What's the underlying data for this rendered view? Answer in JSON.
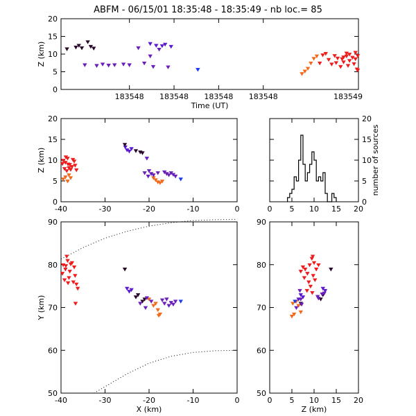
{
  "title": "ABFM - 06/15/01 18:35:48 - 18:35:49 - nb loc.=      85",
  "colors": {
    "red": "#ee1c1c",
    "orange": "#f06a1a",
    "purple": "#6a1fb8",
    "violet": "#5a1ad0",
    "dark": "#2a0a2a",
    "blue": "#1c3cf0",
    "axis": "#000000"
  },
  "chart_data": [
    {
      "id": "time-height",
      "type": "scatter",
      "xlabel": "Time (UT)",
      "ylabel": "Z (km)",
      "xticklabels": [
        "183548",
        "183548",
        "183548",
        "183548",
        "183549"
      ],
      "ylim": [
        0,
        20
      ],
      "yticks": [
        0,
        5,
        10,
        15,
        20
      ],
      "series": [
        {
          "color": "dark",
          "points": [
            [
              0.02,
              11.5
            ],
            [
              0.05,
              12
            ],
            [
              0.06,
              12.5
            ],
            [
              0.07,
              11.8
            ],
            [
              0.09,
              13.5
            ],
            [
              0.1,
              12.2
            ],
            [
              0.11,
              11.7
            ]
          ]
        },
        {
          "color": "purple",
          "points": [
            [
              0.08,
              7
            ],
            [
              0.12,
              6.8
            ],
            [
              0.14,
              7.2
            ],
            [
              0.16,
              6.9
            ],
            [
              0.18,
              7
            ],
            [
              0.21,
              7.2
            ],
            [
              0.23,
              7
            ],
            [
              0.26,
              11.8
            ],
            [
              0.28,
              7.5
            ],
            [
              0.3,
              9.5
            ],
            [
              0.31,
              6.5
            ],
            [
              0.33,
              11.4
            ],
            [
              0.36,
              6.4
            ]
          ]
        },
        {
          "color": "violet",
          "points": [
            [
              0.3,
              13
            ],
            [
              0.32,
              12.5
            ],
            [
              0.34,
              12.4
            ],
            [
              0.35,
              12.8
            ],
            [
              0.37,
              12.2
            ]
          ]
        },
        {
          "color": "blue",
          "points": [
            [
              0.46,
              5.7
            ]
          ]
        },
        {
          "color": "orange",
          "points": [
            [
              0.81,
              4.5
            ],
            [
              0.82,
              5.2
            ],
            [
              0.83,
              6
            ],
            [
              0.84,
              7.5
            ],
            [
              0.85,
              8.8
            ],
            [
              0.86,
              9.5
            ]
          ]
        },
        {
          "color": "red",
          "points": [
            [
              0.87,
              7.5
            ],
            [
              0.88,
              9.8
            ],
            [
              0.89,
              10.2
            ],
            [
              0.9,
              8.5
            ],
            [
              0.91,
              7.2
            ],
            [
              0.92,
              9.6
            ],
            [
              0.93,
              8.9
            ],
            [
              0.94,
              6.5
            ],
            [
              0.95,
              7.8
            ],
            [
              0.95,
              9.2
            ],
            [
              0.96,
              9.5
            ],
            [
              0.97,
              8.2
            ],
            [
              0.97,
              10
            ],
            [
              0.98,
              9.1
            ],
            [
              0.99,
              8.7
            ],
            [
              0.99,
              10.5
            ],
            [
              1.0,
              9.6
            ],
            [
              0.985,
              7.3
            ],
            [
              0.965,
              6.8
            ],
            [
              0.945,
              8.7
            ],
            [
              0.925,
              7.6
            ],
            [
              1.0,
              5.5
            ],
            [
              0.995,
              5.8
            ],
            [
              0.96,
              10.3
            ]
          ]
        }
      ]
    },
    {
      "id": "x-height",
      "type": "scatter",
      "ylabel": "Z (km)",
      "xlim": [
        -40,
        0
      ],
      "ylim": [
        0,
        20
      ],
      "xticks": [
        -40,
        -30,
        -20,
        -10,
        0
      ],
      "yticks": [
        0,
        5,
        10,
        15,
        20
      ],
      "series": [
        {
          "color": "red",
          "points": [
            [
              -39.5,
              10
            ],
            [
              -39,
              9.5
            ],
            [
              -38.5,
              10.5
            ],
            [
              -38,
              9
            ],
            [
              -37.5,
              8.5
            ],
            [
              -37,
              9.8
            ],
            [
              -39.2,
              8
            ],
            [
              -38.7,
              7.5
            ],
            [
              -38.2,
              8.2
            ],
            [
              -37.8,
              7.8
            ],
            [
              -39.8,
              9.2
            ],
            [
              -36.8,
              8.8
            ],
            [
              -38.9,
              10.8
            ],
            [
              -37.3,
              10.2
            ],
            [
              -36.5,
              7.7
            ],
            [
              -38.4,
              9.1
            ]
          ]
        },
        {
          "color": "orange",
          "points": [
            [
              -39.5,
              5.5
            ],
            [
              -39,
              6
            ],
            [
              -38.5,
              5
            ],
            [
              -38.2,
              6.5
            ],
            [
              -37.8,
              5.8
            ],
            [
              -18.5,
              5.3
            ],
            [
              -18,
              4.8
            ],
            [
              -17.5,
              4.6
            ],
            [
              -17,
              5
            ],
            [
              -19,
              5.8
            ]
          ]
        },
        {
          "color": "violet",
          "points": [
            [
              -25,
              12.5
            ],
            [
              -24.5,
              12.2
            ],
            [
              -24,
              12.8
            ],
            [
              -25.4,
              13.2
            ]
          ]
        },
        {
          "color": "dark",
          "points": [
            [
              -25.5,
              13.8
            ],
            [
              -23,
              12.3
            ],
            [
              -22,
              12
            ],
            [
              -21.5,
              11.8
            ]
          ]
        },
        {
          "color": "purple",
          "points": [
            [
              -20.5,
              10.5
            ],
            [
              -20,
              7.5
            ],
            [
              -19.5,
              6.8
            ],
            [
              -19,
              6.5
            ],
            [
              -18,
              7
            ],
            [
              -16.5,
              7.2
            ],
            [
              -16,
              6.8
            ],
            [
              -15.5,
              6.5
            ],
            [
              -15,
              7
            ],
            [
              -14.5,
              6.6
            ],
            [
              -14,
              6.2
            ],
            [
              -21,
              7
            ],
            [
              -20.2,
              6.2
            ]
          ]
        },
        {
          "color": "blue",
          "points": [
            [
              -12.8,
              5.5
            ]
          ]
        }
      ]
    },
    {
      "id": "histogram",
      "type": "bar",
      "xlim": [
        0,
        20
      ],
      "ylim": [
        0,
        20
      ],
      "xticks": [
        0,
        5,
        10,
        15,
        20
      ],
      "yticks": [
        0,
        5,
        10,
        15,
        20
      ],
      "ylabel": "number of sources",
      "bin_width": 0.5,
      "bin_start": 4.0,
      "counts": [
        1,
        2,
        3,
        6,
        5,
        10,
        16,
        9,
        5,
        7,
        9,
        12,
        10,
        5,
        6,
        5,
        7,
        2,
        0,
        0,
        2,
        1
      ]
    },
    {
      "id": "plan-view",
      "type": "scatter",
      "xlabel": "X (km)",
      "ylabel": "Y (km)",
      "xlim": [
        -40,
        0
      ],
      "ylim": [
        50,
        90
      ],
      "xticks": [
        -40,
        -30,
        -20,
        -10,
        0
      ],
      "yticks": [
        50,
        60,
        70,
        80,
        90
      ],
      "series": [
        {
          "color": "red",
          "points": [
            [
              -39.5,
              80
            ],
            [
              -39,
              79
            ],
            [
              -38.5,
              81
            ],
            [
              -38,
              78.5
            ],
            [
              -37.5,
              80.5
            ],
            [
              -37,
              79.5
            ],
            [
              -39.8,
              78
            ],
            [
              -38.7,
              82
            ],
            [
              -38.2,
              77
            ],
            [
              -37.2,
              76
            ],
            [
              -36.5,
              75.5
            ],
            [
              -36.8,
              77.5
            ],
            [
              -39.2,
              76.5
            ],
            [
              -38.9,
              79.8
            ],
            [
              -37.8,
              80.2
            ],
            [
              -36.2,
              74.5
            ],
            [
              -38.4,
              75.8
            ],
            [
              -36.7,
              71
            ]
          ]
        },
        {
          "color": "orange",
          "points": [
            [
              -19,
              70.5
            ],
            [
              -18.5,
              71
            ],
            [
              -18,
              69.5
            ],
            [
              -17.8,
              68.2
            ],
            [
              -17.5,
              68.5
            ],
            [
              -20,
              72
            ]
          ]
        },
        {
          "color": "violet",
          "points": [
            [
              -25,
              74.5
            ],
            [
              -24.5,
              73.8
            ],
            [
              -24,
              74.2
            ]
          ]
        },
        {
          "color": "dark",
          "points": [
            [
              -25.5,
              79
            ],
            [
              -23,
              72.5
            ],
            [
              -22.5,
              73
            ],
            [
              -21.5,
              71.5
            ],
            [
              -21,
              72
            ]
          ]
        },
        {
          "color": "purple",
          "points": [
            [
              -22,
              71
            ],
            [
              -20.8,
              70
            ],
            [
              -20.5,
              72.3
            ],
            [
              -19.5,
              71.5
            ],
            [
              -16.5,
              71
            ],
            [
              -16,
              72
            ],
            [
              -15.5,
              70.5
            ],
            [
              -15,
              71.2
            ],
            [
              -14.5,
              70.8
            ],
            [
              -14,
              71.5
            ],
            [
              -17,
              71.8
            ]
          ]
        },
        {
          "color": "blue",
          "points": [
            [
              -12.8,
              71.5
            ]
          ]
        }
      ],
      "curves": [
        {
          "style": "dotted",
          "points": [
            [
              -40,
              81.3
            ],
            [
              -35,
              84
            ],
            [
              -30,
              86.2
            ],
            [
              -25,
              87.8
            ],
            [
              -20,
              89
            ],
            [
              -15,
              89.8
            ],
            [
              -10,
              90.3
            ],
            [
              -5,
              90.5
            ],
            [
              0,
              90.6
            ]
          ]
        },
        {
          "style": "dotted",
          "points": [
            [
              -32.5,
              50
            ],
            [
              -30,
              51.5
            ],
            [
              -25,
              54.5
            ],
            [
              -20,
              57
            ],
            [
              -15,
              58.6
            ],
            [
              -10,
              59.5
            ],
            [
              -5,
              59.9
            ],
            [
              0,
              60
            ]
          ]
        }
      ]
    },
    {
      "id": "z-plan",
      "type": "scatter",
      "xlabel": "Z (km)",
      "xlim": [
        0,
        20
      ],
      "ylim": [
        50,
        90
      ],
      "xticks": [
        0,
        5,
        10,
        15,
        20
      ],
      "yticks": [
        50,
        60,
        70,
        80,
        90
      ],
      "series": [
        {
          "color": "red",
          "points": [
            [
              8,
              79
            ],
            [
              9,
              80
            ],
            [
              10,
              80.5
            ],
            [
              9.5,
              81.5
            ],
            [
              8.5,
              78
            ],
            [
              7.5,
              79.5
            ],
            [
              10.5,
              79
            ],
            [
              9.8,
              77.5
            ],
            [
              8.8,
              76
            ],
            [
              9.2,
              75
            ],
            [
              7.8,
              77
            ],
            [
              10.2,
              76.5
            ],
            [
              8.4,
              74
            ],
            [
              9.6,
              73.5
            ],
            [
              7,
              78.5
            ],
            [
              9.7,
              82
            ],
            [
              11,
              80
            ]
          ]
        },
        {
          "color": "orange",
          "points": [
            [
              5,
              68
            ],
            [
              5.5,
              68.5
            ],
            [
              5.2,
              71
            ],
            [
              6,
              71.5
            ],
            [
              6.5,
              70.5
            ],
            [
              7,
              69
            ]
          ]
        },
        {
          "color": "violet",
          "points": [
            [
              6.5,
              72
            ],
            [
              7,
              73
            ],
            [
              7.5,
              72.5
            ],
            [
              12,
              74.5
            ],
            [
              12.5,
              74
            ]
          ]
        },
        {
          "color": "dark",
          "points": [
            [
              7,
              71
            ],
            [
              11.5,
              72
            ],
            [
              12,
              73
            ],
            [
              13.8,
              79
            ]
          ]
        },
        {
          "color": "purple",
          "points": [
            [
              6,
              70
            ],
            [
              7.2,
              70.8
            ],
            [
              7,
              72
            ],
            [
              6.8,
              74
            ],
            [
              11,
              72.2
            ],
            [
              11.8,
              73.2
            ],
            [
              10.8,
              72.6
            ],
            [
              12.3,
              73.4
            ]
          ]
        },
        {
          "color": "blue",
          "points": [
            [
              5.7,
              71.5
            ]
          ]
        }
      ]
    }
  ]
}
